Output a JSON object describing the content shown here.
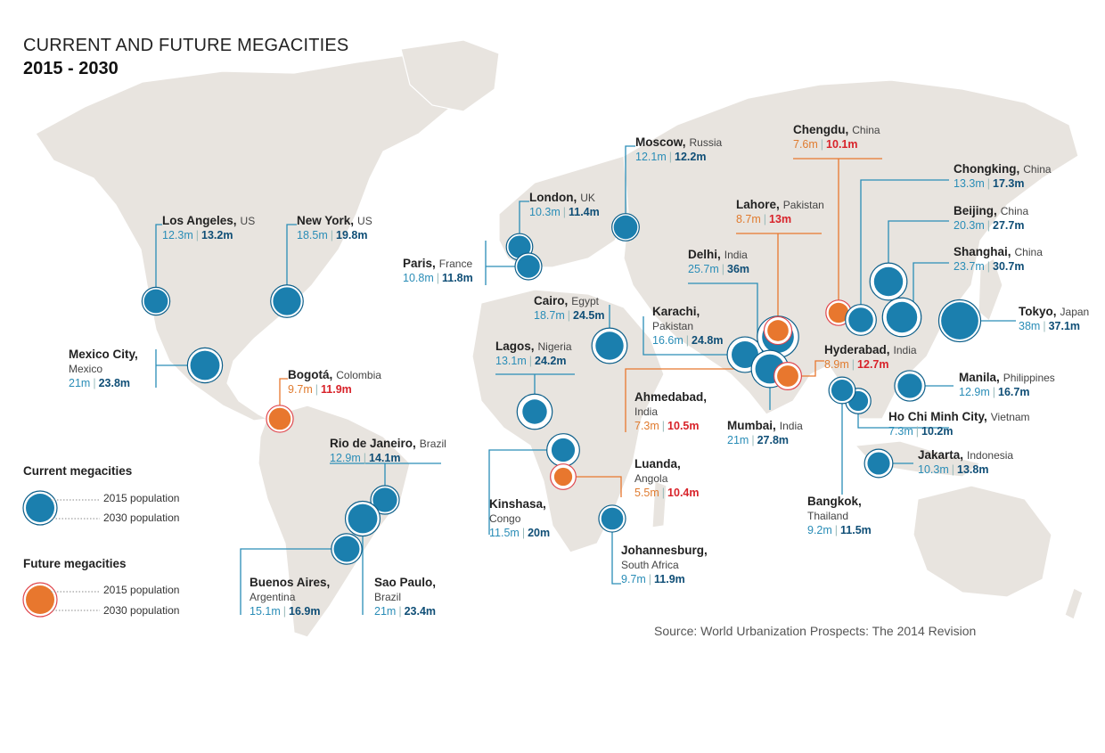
{
  "header": {
    "title": "CURRENT AND FUTURE MEGACITIES",
    "subtitle": "2015 - 2030"
  },
  "legend": {
    "current_heading": "Current megacities",
    "future_heading": "Future megacities",
    "pop_2015": "2015 population",
    "pop_2030": "2030 population"
  },
  "source": "Source: World Urbanization Prospects: The 2014 Revision",
  "colors": {
    "land": "#e8e4df",
    "current": "#1b7fae",
    "current_ring": "#0d5f8a",
    "future": "#e8772e",
    "future_ring": "#e0474d",
    "line_current": "#2a8db7",
    "line_future": "#e8772e"
  },
  "cities": [
    {
      "id": "los-angeles",
      "name": "Los Angeles,",
      "country": "US",
      "p2015": "12.3m",
      "p2030": "13.2m",
      "v2015": 12.3,
      "v2030": 13.2,
      "future": false
    },
    {
      "id": "new-york",
      "name": "New York,",
      "country": "US",
      "p2015": "18.5m",
      "p2030": "19.8m",
      "v2015": 18.5,
      "v2030": 19.8,
      "future": false
    },
    {
      "id": "mexico-city",
      "name": "Mexico City,",
      "country": "Mexico",
      "p2015": "21m",
      "p2030": "23.8m",
      "v2015": 21,
      "v2030": 23.8,
      "future": false
    },
    {
      "id": "bogota",
      "name": "Bogotá,",
      "country": "Colombia",
      "p2015": "9.7m",
      "p2030": "11.9m",
      "v2015": 9.7,
      "v2030": 11.9,
      "future": true
    },
    {
      "id": "rio-de-janeiro",
      "name": "Rio de Janeiro,",
      "country": "Brazil",
      "p2015": "12.9m",
      "p2030": "14.1m",
      "v2015": 12.9,
      "v2030": 14.1,
      "future": false
    },
    {
      "id": "buenos-aires",
      "name": "Buenos Aires,",
      "country": "Argentina",
      "p2015": "15.1m",
      "p2030": "16.9m",
      "v2015": 15.1,
      "v2030": 16.9,
      "future": false
    },
    {
      "id": "sao-paulo",
      "name": "Sao Paulo,",
      "country": "Brazil",
      "p2015": "21m",
      "p2030": "23.4m",
      "v2015": 21,
      "v2030": 23.4,
      "future": false
    },
    {
      "id": "london",
      "name": "London,",
      "country": "UK",
      "p2015": "10.3m",
      "p2030": "11.4m",
      "v2015": 10.3,
      "v2030": 11.4,
      "future": false
    },
    {
      "id": "paris",
      "name": "Paris,",
      "country": "France",
      "p2015": "10.8m",
      "p2030": "11.8m",
      "v2015": 10.8,
      "v2030": 11.8,
      "future": false
    },
    {
      "id": "moscow",
      "name": "Moscow,",
      "country": "Russia",
      "p2015": "12.1m",
      "p2030": "12.2m",
      "v2015": 12.1,
      "v2030": 12.2,
      "future": false
    },
    {
      "id": "cairo",
      "name": "Cairo,",
      "country": "Egypt",
      "p2015": "18.7m",
      "p2030": "24.5m",
      "v2015": 18.7,
      "v2030": 24.5,
      "future": false
    },
    {
      "id": "lagos",
      "name": "Lagos,",
      "country": "Nigeria",
      "p2015": "13.1m",
      "p2030": "24.2m",
      "v2015": 13.1,
      "v2030": 24.2,
      "future": false
    },
    {
      "id": "kinshasa",
      "name": "Kinshasa,",
      "country": "Congo",
      "p2015": "11.5m",
      "p2030": "20m",
      "v2015": 11.5,
      "v2030": 20,
      "future": false
    },
    {
      "id": "luanda",
      "name": "Luanda,",
      "country": "Angola",
      "p2015": "5.5m",
      "p2030": "10.4m",
      "v2015": 5.5,
      "v2030": 10.4,
      "future": true
    },
    {
      "id": "johannesburg",
      "name": "Johannesburg,",
      "country": "South Africa",
      "p2015": "9.7m",
      "p2030": "11.9m",
      "v2015": 9.7,
      "v2030": 11.9,
      "future": false
    },
    {
      "id": "ahmedabad",
      "name": "Ahmedabad,",
      "country": "India",
      "p2015": "7.3m",
      "p2030": "10.5m",
      "v2015": 7.3,
      "v2030": 10.5,
      "future": true
    },
    {
      "id": "karachi",
      "name": "Karachi,",
      "country": "Pakistan",
      "p2015": "16.6m",
      "p2030": "24.8m",
      "v2015": 16.6,
      "v2030": 24.8,
      "future": false
    },
    {
      "id": "delhi",
      "name": "Delhi,",
      "country": "India",
      "p2015": "25.7m",
      "p2030": "36m",
      "v2015": 25.7,
      "v2030": 36,
      "future": false
    },
    {
      "id": "lahore",
      "name": "Lahore,",
      "country": "Pakistan",
      "p2015": "8.7m",
      "p2030": "13m",
      "v2015": 8.7,
      "v2030": 13,
      "future": true
    },
    {
      "id": "mumbai",
      "name": "Mumbai,",
      "country": "India",
      "p2015": "21m",
      "p2030": "27.8m",
      "v2015": 21,
      "v2030": 27.8,
      "future": false
    },
    {
      "id": "hyderabad",
      "name": "Hyderabad,",
      "country": "India",
      "p2015": "8.9m",
      "p2030": "12.7m",
      "v2015": 8.9,
      "v2030": 12.7,
      "future": true
    },
    {
      "id": "chengdu",
      "name": "Chengdu,",
      "country": "China",
      "p2015": "7.6m",
      "p2030": "10.1m",
      "v2015": 7.6,
      "v2030": 10.1,
      "future": true
    },
    {
      "id": "chongking",
      "name": "Chongking,",
      "country": "China",
      "p2015": "13.3m",
      "p2030": "17.3m",
      "v2015": 13.3,
      "v2030": 17.3,
      "future": false
    },
    {
      "id": "beijing",
      "name": "Beijing,",
      "country": "China",
      "p2015": "20.3m",
      "p2030": "27.7m",
      "v2015": 20.3,
      "v2030": 27.7,
      "future": false
    },
    {
      "id": "shanghai",
      "name": "Shanghai,",
      "country": "China",
      "p2015": "23.7m",
      "p2030": "30.7m",
      "v2015": 23.7,
      "v2030": 30.7,
      "future": false
    },
    {
      "id": "tokyo",
      "name": "Tokyo,",
      "country": "Japan",
      "p2015": "38m",
      "p2030": "37.1m",
      "v2015": 38,
      "v2030": 37.1,
      "future": false
    },
    {
      "id": "manila",
      "name": "Manila,",
      "country": "Philippines",
      "p2015": "12.9m",
      "p2030": "16.7m",
      "v2015": 12.9,
      "v2030": 16.7,
      "future": false
    },
    {
      "id": "ho-chi-minh-city",
      "name": "Ho Chi Minh City,",
      "country": "Vietnam",
      "p2015": "7.3m",
      "p2030": "10.2m",
      "v2015": 7.3,
      "v2030": 10.2,
      "future": false
    },
    {
      "id": "jakarta",
      "name": "Jakarta,",
      "country": "Indonesia",
      "p2015": "10.3m",
      "p2030": "13.8m",
      "v2015": 10.3,
      "v2030": 13.8,
      "future": false
    },
    {
      "id": "bangkok",
      "name": "Bangkok,",
      "country": "Thailand",
      "p2015": "9.2m",
      "p2030": "11.5m",
      "v2015": 9.2,
      "v2030": 11.5,
      "future": false
    }
  ]
}
